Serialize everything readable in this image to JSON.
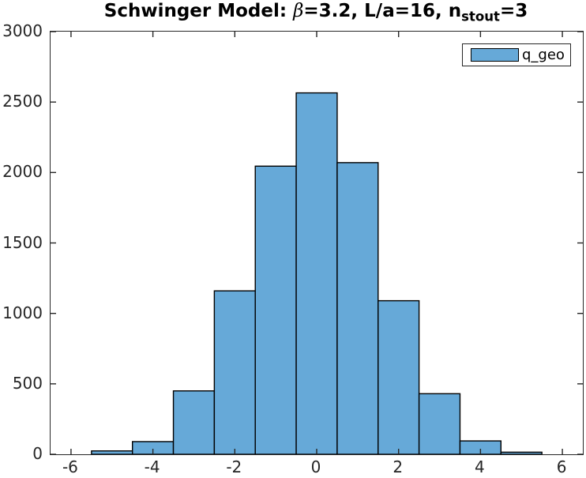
{
  "title_parts": {
    "text1": "Schwinger Model: ",
    "beta": "β",
    "text2": "=3.2, L/a=16, n",
    "subscript": "stout",
    "text3": "=3"
  },
  "legend": {
    "position": "northeast",
    "items": [
      {
        "label": "q_geo",
        "swatch_fill": "#66A9D8",
        "swatch_edge": "#000000"
      }
    ]
  },
  "chart_data": {
    "type": "bar",
    "subtype": "histogram",
    "title": "Schwinger Model: β=3.2, L/a=16, n_stout=3",
    "series": [
      {
        "name": "q_geo",
        "bin_centers": [
          -5,
          -4,
          -3,
          -2,
          -1,
          0,
          1,
          2,
          3,
          4,
          5
        ],
        "bin_width": 1,
        "values": [
          24,
          90,
          450,
          1160,
          2045,
          2565,
          2070,
          1090,
          430,
          95,
          15
        ]
      }
    ],
    "xlabel": "",
    "ylabel": "",
    "xlim": [
      -6.5,
      6.5
    ],
    "ylim": [
      0,
      3000
    ],
    "x_ticks": [
      -6,
      -4,
      -2,
      0,
      2,
      4,
      6
    ],
    "y_ticks": [
      0,
      500,
      1000,
      1500,
      2000,
      2500,
      3000
    ],
    "grid": false,
    "box": true,
    "tick_direction": "in",
    "legend_position": "northeast",
    "bar_fill": "#66A9D8",
    "bar_edge": "#000000",
    "axis_color": "#262626"
  }
}
